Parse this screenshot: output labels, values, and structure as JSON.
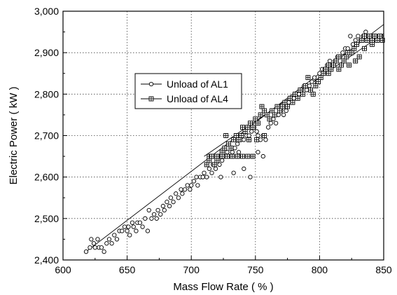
{
  "chart_data": {
    "type": "scatter",
    "title": "",
    "xlabel": "Mass Flow Rate ( % )",
    "ylabel": "Electric Power  ( kW )",
    "xlim": [
      600,
      850
    ],
    "ylim": [
      2400,
      3000
    ],
    "xticks": [
      600,
      650,
      700,
      750,
      800,
      850
    ],
    "yticks": [
      2400,
      2500,
      2600,
      2700,
      2800,
      2900,
      3000
    ],
    "xtick_labels": [
      "600",
      "650",
      "700",
      "750",
      "800",
      "850"
    ],
    "ytick_labels": [
      "2,400",
      "2,500",
      "2,600",
      "2,700",
      "2,800",
      "2,900",
      "3,000"
    ],
    "grid": true,
    "grid_style": "dotted",
    "legend_position": "upper-left",
    "series": [
      {
        "name": "Unload of AL1",
        "marker": "circle",
        "color": "#000000",
        "fit_line": {
          "x": [
            618,
            850
          ],
          "y": [
            2420,
            2968
          ]
        },
        "points": [
          [
            618,
            2420
          ],
          [
            621,
            2430
          ],
          [
            622,
            2450
          ],
          [
            624,
            2440
          ],
          [
            625,
            2430
          ],
          [
            627,
            2450
          ],
          [
            628,
            2430
          ],
          [
            630,
            2430
          ],
          [
            632,
            2420
          ],
          [
            634,
            2440
          ],
          [
            636,
            2450
          ],
          [
            638,
            2440
          ],
          [
            640,
            2460
          ],
          [
            642,
            2450
          ],
          [
            644,
            2470
          ],
          [
            646,
            2470
          ],
          [
            648,
            2480
          ],
          [
            650,
            2470
          ],
          [
            651,
            2480
          ],
          [
            652,
            2460
          ],
          [
            654,
            2490
          ],
          [
            655,
            2480
          ],
          [
            657,
            2470
          ],
          [
            658,
            2490
          ],
          [
            660,
            2490
          ],
          [
            662,
            2480
          ],
          [
            664,
            2500
          ],
          [
            666,
            2470
          ],
          [
            667,
            2520
          ],
          [
            669,
            2500
          ],
          [
            671,
            2510
          ],
          [
            673,
            2500
          ],
          [
            674,
            2520
          ],
          [
            676,
            2510
          ],
          [
            678,
            2530
          ],
          [
            679,
            2520
          ],
          [
            681,
            2540
          ],
          [
            683,
            2530
          ],
          [
            684,
            2550
          ],
          [
            686,
            2540
          ],
          [
            688,
            2560
          ],
          [
            690,
            2550
          ],
          [
            692,
            2570
          ],
          [
            693,
            2560
          ],
          [
            695,
            2570
          ],
          [
            697,
            2580
          ],
          [
            699,
            2570
          ],
          [
            700,
            2580
          ],
          [
            702,
            2590
          ],
          [
            704,
            2600
          ],
          [
            705,
            2580
          ],
          [
            707,
            2600
          ],
          [
            709,
            2600
          ],
          [
            710,
            2610
          ],
          [
            712,
            2600
          ],
          [
            714,
            2620
          ],
          [
            716,
            2610
          ],
          [
            717,
            2630
          ],
          [
            719,
            2620
          ],
          [
            720,
            2640
          ],
          [
            722,
            2630
          ],
          [
            724,
            2640
          ],
          [
            726,
            2650
          ],
          [
            728,
            2660
          ],
          [
            730,
            2650
          ],
          [
            732,
            2660
          ],
          [
            734,
            2670
          ],
          [
            736,
            2680
          ],
          [
            737,
            2660
          ],
          [
            739,
            2690
          ],
          [
            741,
            2690
          ],
          [
            743,
            2700
          ],
          [
            745,
            2700
          ],
          [
            747,
            2710
          ],
          [
            749,
            2720
          ],
          [
            751,
            2710
          ],
          [
            752,
            2700
          ],
          [
            754,
            2690
          ],
          [
            756,
            2700
          ],
          [
            758,
            2690
          ],
          [
            760,
            2720
          ],
          [
            762,
            2730
          ],
          [
            764,
            2740
          ],
          [
            766,
            2730
          ],
          [
            768,
            2750
          ],
          [
            770,
            2760
          ],
          [
            772,
            2750
          ],
          [
            774,
            2760
          ],
          [
            776,
            2780
          ],
          [
            778,
            2790
          ],
          [
            780,
            2790
          ],
          [
            782,
            2800
          ],
          [
            784,
            2800
          ],
          [
            786,
            2810
          ],
          [
            788,
            2820
          ],
          [
            790,
            2810
          ],
          [
            792,
            2820
          ],
          [
            794,
            2830
          ],
          [
            796,
            2840
          ],
          [
            798,
            2830
          ],
          [
            800,
            2850
          ],
          [
            802,
            2860
          ],
          [
            804,
            2860
          ],
          [
            806,
            2870
          ],
          [
            808,
            2880
          ],
          [
            810,
            2870
          ],
          [
            812,
            2880
          ],
          [
            814,
            2890
          ],
          [
            816,
            2890
          ],
          [
            818,
            2900
          ],
          [
            820,
            2910
          ],
          [
            822,
            2910
          ],
          [
            824,
            2940
          ],
          [
            826,
            2920
          ],
          [
            828,
            2930
          ],
          [
            830,
            2940
          ],
          [
            832,
            2930
          ],
          [
            834,
            2940
          ],
          [
            836,
            2950
          ],
          [
            838,
            2940
          ],
          [
            840,
            2940
          ],
          [
            842,
            2940
          ],
          [
            844,
            2930
          ],
          [
            846,
            2940
          ],
          [
            848,
            2940
          ],
          [
            728,
            2650
          ],
          [
            733,
            2610
          ],
          [
            737,
            2650
          ],
          [
            741,
            2620
          ],
          [
            744,
            2650
          ],
          [
            748,
            2650
          ],
          [
            752,
            2660
          ],
          [
            723,
            2600
          ],
          [
            746,
            2600
          ],
          [
            756,
            2650
          ]
        ]
      },
      {
        "name": "Unload of AL4",
        "marker": "square-plus",
        "color": "#000000",
        "fit_line": {
          "x": [
            710,
            850
          ],
          "y": [
            2650,
            2946
          ]
        },
        "points": [
          [
            712,
            2630
          ],
          [
            714,
            2640
          ],
          [
            716,
            2650
          ],
          [
            718,
            2630
          ],
          [
            720,
            2640
          ],
          [
            722,
            2650
          ],
          [
            724,
            2660
          ],
          [
            726,
            2670
          ],
          [
            727,
            2700
          ],
          [
            729,
            2680
          ],
          [
            731,
            2670
          ],
          [
            733,
            2690
          ],
          [
            735,
            2700
          ],
          [
            737,
            2690
          ],
          [
            739,
            2700
          ],
          [
            740,
            2720
          ],
          [
            742,
            2710
          ],
          [
            744,
            2720
          ],
          [
            746,
            2730
          ],
          [
            748,
            2720
          ],
          [
            750,
            2740
          ],
          [
            752,
            2730
          ],
          [
            754,
            2750
          ],
          [
            755,
            2770
          ],
          [
            757,
            2760
          ],
          [
            759,
            2750
          ],
          [
            761,
            2740
          ],
          [
            763,
            2760
          ],
          [
            765,
            2750
          ],
          [
            767,
            2770
          ],
          [
            769,
            2760
          ],
          [
            771,
            2770
          ],
          [
            773,
            2780
          ],
          [
            775,
            2770
          ],
          [
            777,
            2790
          ],
          [
            779,
            2780
          ],
          [
            781,
            2800
          ],
          [
            783,
            2790
          ],
          [
            785,
            2810
          ],
          [
            787,
            2800
          ],
          [
            789,
            2820
          ],
          [
            791,
            2840
          ],
          [
            793,
            2810
          ],
          [
            795,
            2800
          ],
          [
            797,
            2820
          ],
          [
            799,
            2830
          ],
          [
            801,
            2840
          ],
          [
            803,
            2850
          ],
          [
            805,
            2860
          ],
          [
            807,
            2870
          ],
          [
            809,
            2860
          ],
          [
            811,
            2870
          ],
          [
            813,
            2880
          ],
          [
            815,
            2890
          ],
          [
            817,
            2870
          ],
          [
            819,
            2880
          ],
          [
            821,
            2890
          ],
          [
            823,
            2870
          ],
          [
            825,
            2900
          ],
          [
            827,
            2910
          ],
          [
            829,
            2920
          ],
          [
            831,
            2890
          ],
          [
            833,
            2930
          ],
          [
            835,
            2910
          ],
          [
            837,
            2930
          ],
          [
            839,
            2940
          ],
          [
            841,
            2930
          ],
          [
            843,
            2940
          ],
          [
            845,
            2930
          ],
          [
            847,
            2940
          ],
          [
            849,
            2930
          ],
          [
            714,
            2650
          ],
          [
            716,
            2650
          ],
          [
            720,
            2650
          ],
          [
            724,
            2650
          ],
          [
            728,
            2650
          ],
          [
            732,
            2650
          ],
          [
            736,
            2650
          ],
          [
            740,
            2650
          ],
          [
            744,
            2650
          ],
          [
            748,
            2650
          ],
          [
            745,
            2690
          ],
          [
            751,
            2690
          ],
          [
            757,
            2700
          ],
          [
            815,
            2860
          ],
          [
            835,
            2940
          ],
          [
            841,
            2920
          ],
          [
            828,
            2880
          ],
          [
            822,
            2900
          ],
          [
            807,
            2850
          ]
        ]
      }
    ]
  }
}
